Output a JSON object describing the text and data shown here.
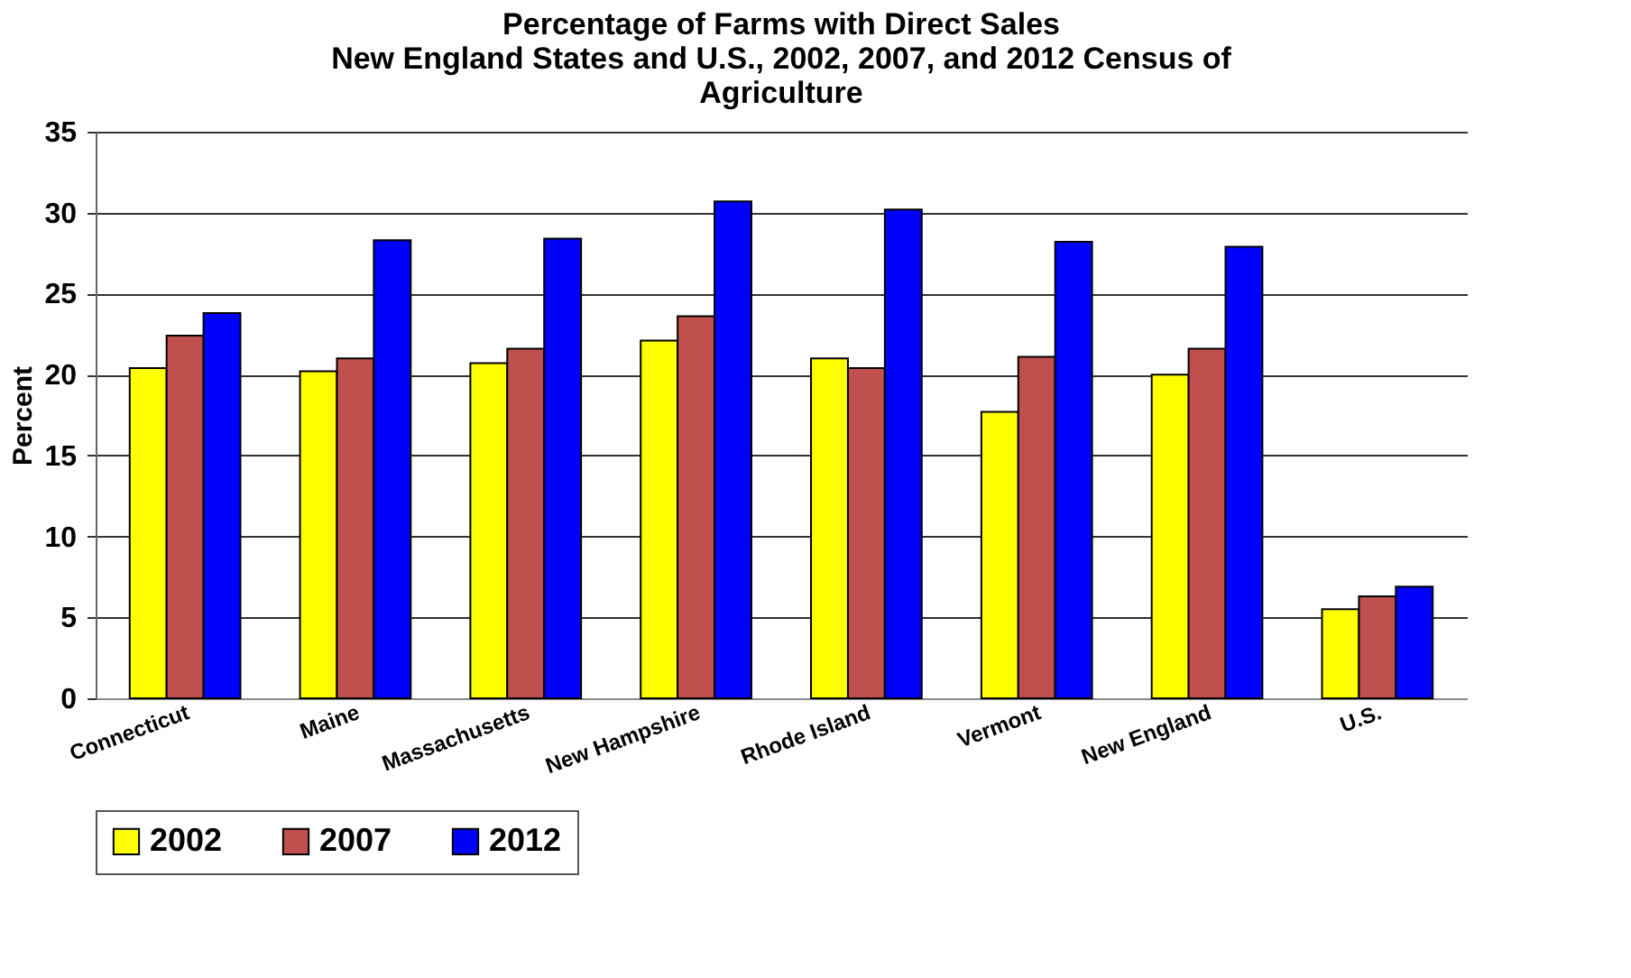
{
  "chart_data": {
    "type": "bar",
    "title": "Percentage of Farms with Direct Sales\nNew England States and U.S., 2002, 2007, and 2012 Census of\nAgriculture",
    "ylabel": "Percent",
    "categories": [
      "Connecticut",
      "Maine",
      "Massachusetts",
      "New Hampshire",
      "Rhode Island",
      "Vermont",
      "New England",
      "U.S."
    ],
    "series": [
      {
        "name": "2002",
        "color": "#ffff00",
        "values": [
          20.4,
          20.2,
          20.7,
          22.1,
          21.0,
          17.7,
          20.0,
          5.5
        ]
      },
      {
        "name": "2007",
        "color": "#c0504d",
        "values": [
          22.4,
          21.0,
          21.6,
          23.6,
          20.4,
          21.1,
          21.6,
          6.3
        ]
      },
      {
        "name": "2012",
        "color": "#0000ff",
        "values": [
          23.8,
          28.3,
          28.4,
          30.7,
          30.2,
          28.2,
          27.9,
          6.9
        ]
      }
    ],
    "ylim": [
      0,
      35
    ],
    "yticks": [
      0,
      5,
      10,
      15,
      20,
      25,
      30,
      35
    ],
    "grid": "y",
    "legend": "bottom"
  }
}
